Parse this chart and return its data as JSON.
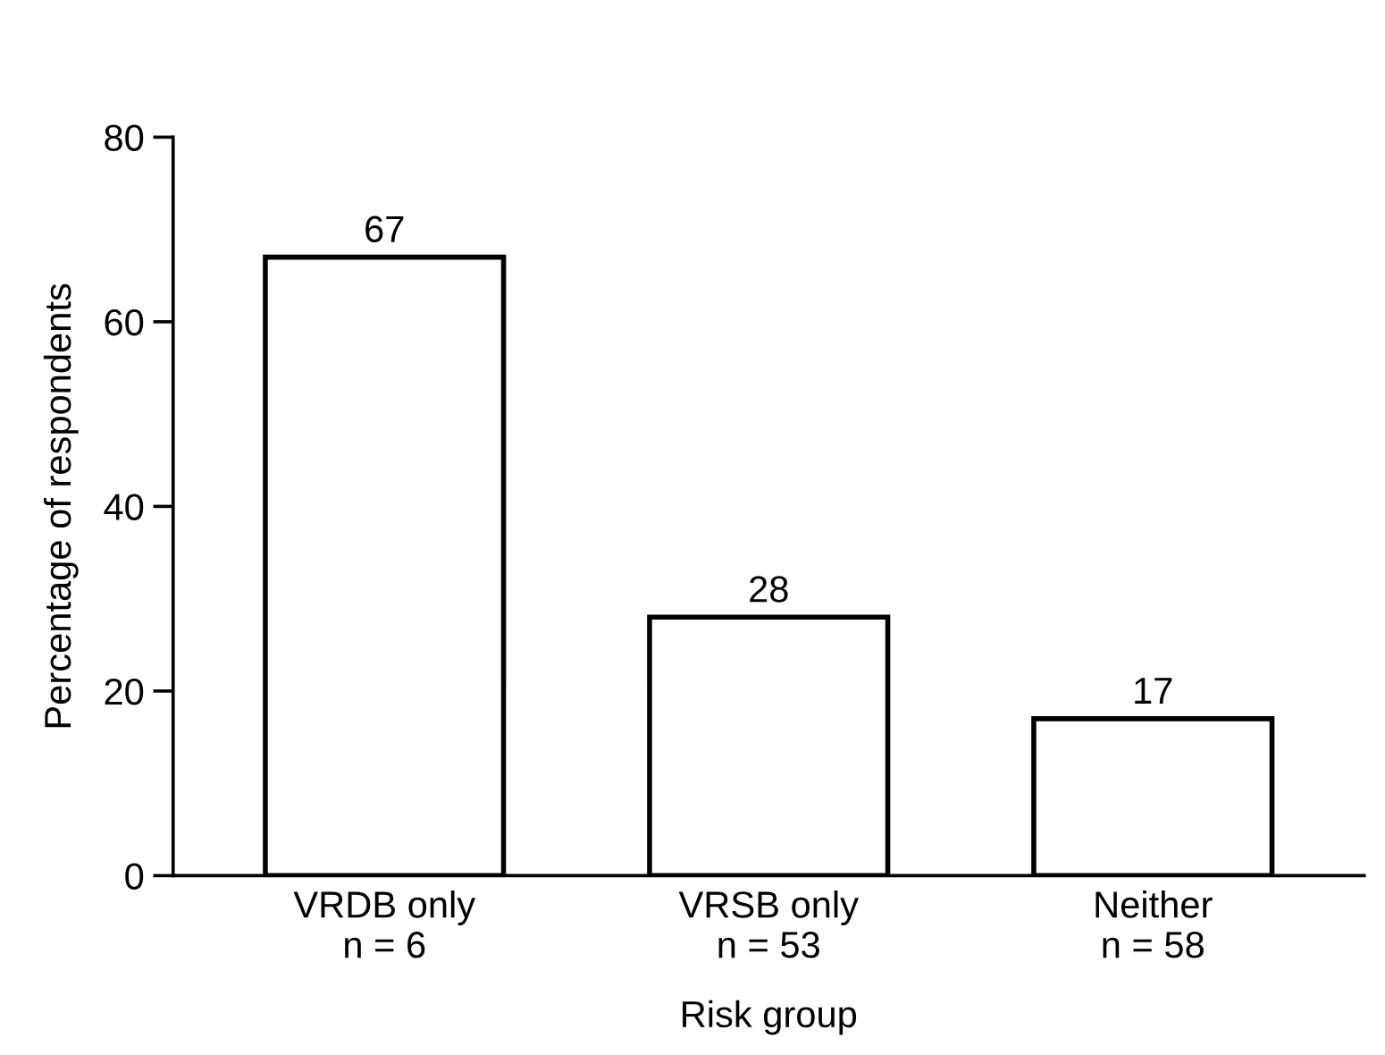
{
  "chart_data": {
    "type": "bar",
    "xlabel": "Risk group",
    "ylabel": "Percentage of respondents",
    "categories": [
      "VRDB only\nn = 6",
      "VRSB only\nn = 53",
      "Neither\nn = 58"
    ],
    "values": [
      67,
      28,
      17
    ],
    "color": "#ffffff",
    "ylim": [
      0,
      80
    ],
    "yticks": [
      0,
      20,
      40,
      60,
      80
    ],
    "data_labels": true,
    "grid": false,
    "legend": false
  }
}
